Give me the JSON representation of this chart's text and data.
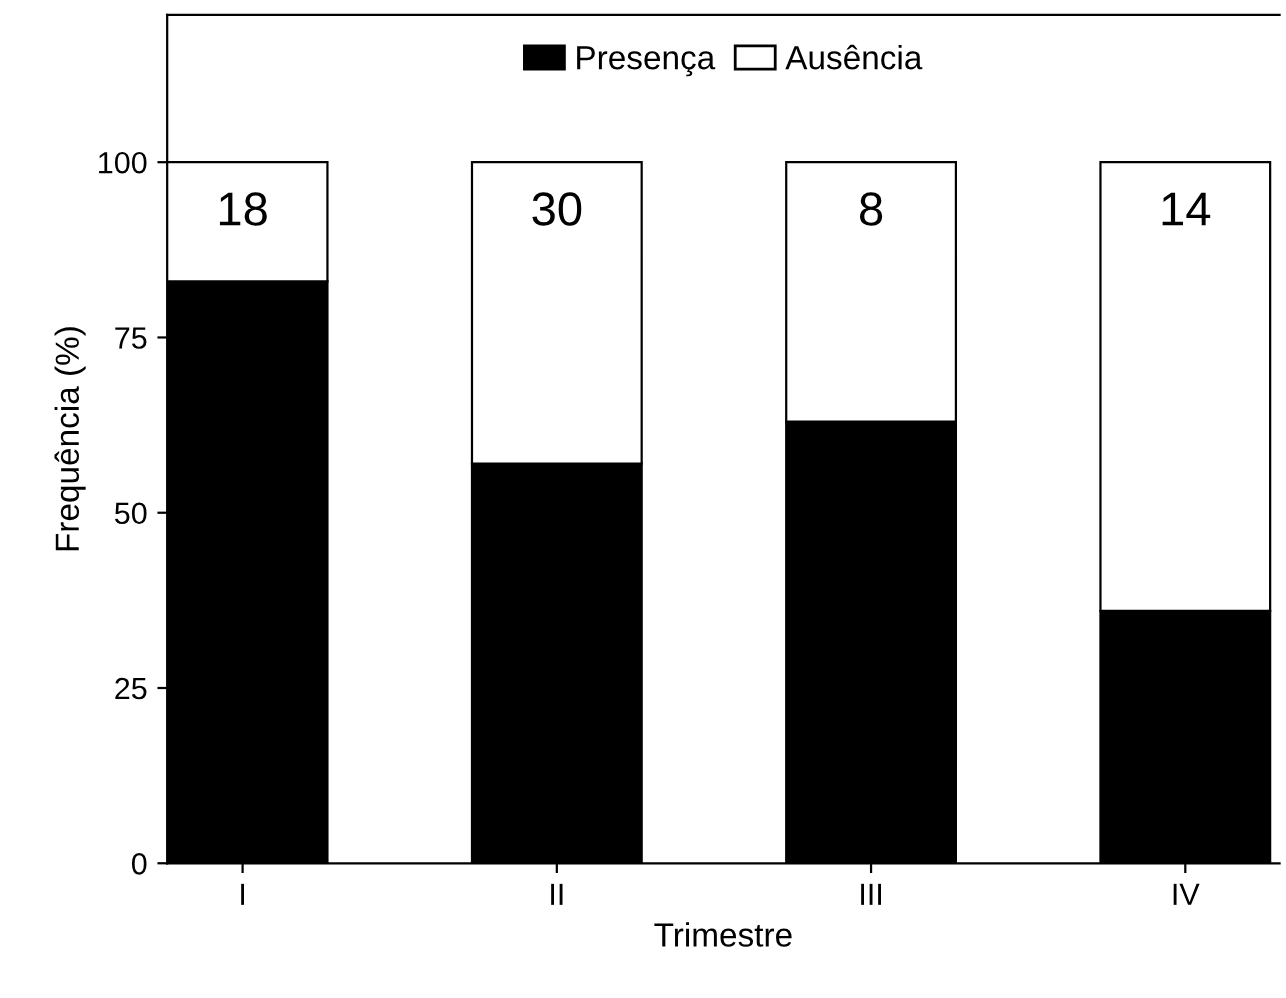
{
  "chart_data": {
    "type": "bar",
    "stacked": true,
    "xlabel": "Trimestre",
    "ylabel": "Frequência (%)",
    "categories": [
      "I",
      "II",
      "III",
      "IV"
    ],
    "series": [
      {
        "name": "Presença",
        "color": "#000000",
        "values": [
          83,
          57,
          63,
          36
        ]
      },
      {
        "name": "Ausência",
        "color": "#ffffff",
        "values": [
          17,
          43,
          37,
          64
        ]
      }
    ],
    "ylim": [
      0,
      121
    ],
    "yticks": [
      0,
      25,
      50,
      75,
      100
    ],
    "grid": false,
    "legend": "top",
    "annotations": [
      "18",
      "30",
      "8",
      "14"
    ]
  }
}
